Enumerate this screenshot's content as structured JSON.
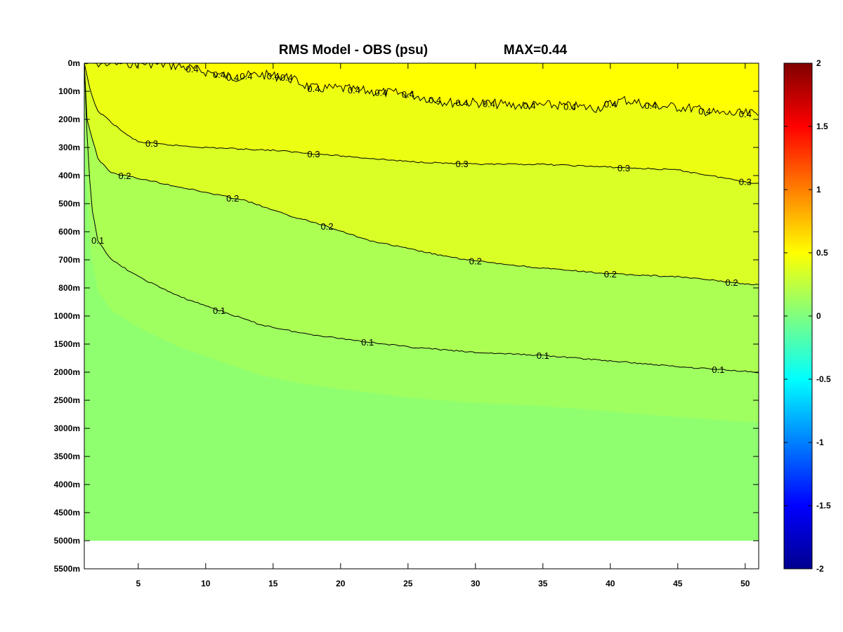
{
  "chart_data": {
    "type": "heatmap",
    "title": "RMS Model - OBS (psu)",
    "max_label": "MAX=0.44",
    "xlabel": "",
    "ylabel": "",
    "xlim": [
      1,
      51
    ],
    "x_ticks": [
      5,
      10,
      15,
      20,
      25,
      30,
      35,
      40,
      45,
      50
    ],
    "y_ticks": [
      "0m",
      "100m",
      "200m",
      "300m",
      "400m",
      "500m",
      "600m",
      "700m",
      "800m",
      "1000m",
      "1500m",
      "2000m",
      "2500m",
      "3000m",
      "3500m",
      "4000m",
      "4500m",
      "5000m",
      "5500m"
    ],
    "colorbar": {
      "range": [
        -2,
        2
      ],
      "ticks": [
        "2",
        "1.5",
        "1",
        "0.5",
        "0",
        "-0.5",
        "-1",
        "-1.5",
        "-2"
      ],
      "colormap": "jet"
    },
    "contours": [
      {
        "level": 0.4,
        "label": "0.4",
        "depth_index_by_x": [
          [
            1,
            0.0
          ],
          [
            6,
            0.0
          ],
          [
            8,
            0.1
          ],
          [
            10,
            0.3
          ],
          [
            12,
            0.5
          ],
          [
            14,
            0.4
          ],
          [
            16,
            0.5
          ],
          [
            18,
            0.9
          ],
          [
            20,
            0.9
          ],
          [
            22,
            1.0
          ],
          [
            25,
            1.1
          ],
          [
            28,
            1.4
          ],
          [
            30,
            1.4
          ],
          [
            33,
            1.5
          ],
          [
            36,
            1.5
          ],
          [
            39,
            1.6
          ],
          [
            41,
            1.3
          ],
          [
            43,
            1.5
          ],
          [
            46,
            1.6
          ],
          [
            48,
            1.8
          ],
          [
            51,
            1.8
          ]
        ],
        "label_x": [
          9,
          11,
          12,
          13,
          15,
          16,
          18,
          21,
          23,
          25,
          27,
          29,
          31,
          34,
          37,
          40,
          43,
          47,
          50
        ]
      },
      {
        "level": 0.3,
        "label": "0.3",
        "depth_index_by_x": [
          [
            1,
            0.0
          ],
          [
            1.5,
            1.1
          ],
          [
            2,
            1.7
          ],
          [
            3,
            2.1
          ],
          [
            4,
            2.5
          ],
          [
            5,
            2.8
          ],
          [
            7,
            2.9
          ],
          [
            10,
            3.0
          ],
          [
            15,
            3.1
          ],
          [
            20,
            3.3
          ],
          [
            25,
            3.5
          ],
          [
            30,
            3.6
          ],
          [
            35,
            3.6
          ],
          [
            40,
            3.7
          ],
          [
            45,
            3.8
          ],
          [
            51,
            4.3
          ]
        ],
        "label_x": [
          6,
          18,
          29,
          41,
          50
        ]
      },
      {
        "level": 0.2,
        "label": "0.2",
        "depth_index_by_x": [
          [
            1,
            0.0
          ],
          [
            1.2,
            2.0
          ],
          [
            2,
            3.4
          ],
          [
            3,
            3.9
          ],
          [
            5,
            4.1
          ],
          [
            7,
            4.3
          ],
          [
            10,
            4.6
          ],
          [
            13,
            4.9
          ],
          [
            16,
            5.4
          ],
          [
            19,
            5.8
          ],
          [
            22,
            6.3
          ],
          [
            25,
            6.6
          ],
          [
            28,
            6.9
          ],
          [
            31,
            7.1
          ],
          [
            35,
            7.3
          ],
          [
            40,
            7.5
          ],
          [
            45,
            7.6
          ],
          [
            51,
            7.9
          ]
        ],
        "label_x": [
          4,
          12,
          19,
          30,
          40,
          49
        ]
      },
      {
        "level": 0.1,
        "label": "0.1",
        "depth_index_by_x": [
          [
            1,
            0.0
          ],
          [
            1.2,
            2.5
          ],
          [
            1.5,
            5.0
          ],
          [
            2,
            6.3
          ],
          [
            3,
            7.0
          ],
          [
            5,
            7.6
          ],
          [
            8,
            8.3
          ],
          [
            11,
            8.8
          ],
          [
            14,
            9.3
          ],
          [
            17,
            9.6
          ],
          [
            20,
            9.8
          ],
          [
            25,
            10.1
          ],
          [
            30,
            10.3
          ],
          [
            35,
            10.4
          ],
          [
            40,
            10.6
          ],
          [
            45,
            10.8
          ],
          [
            51,
            11.0
          ]
        ],
        "label_x": [
          2,
          11,
          22,
          35,
          48
        ]
      }
    ]
  }
}
